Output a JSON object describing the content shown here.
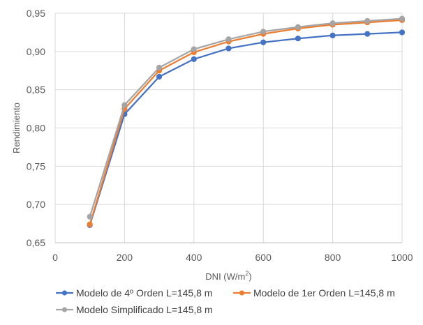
{
  "chart_data": {
    "type": "line",
    "x": [
      100,
      200,
      300,
      400,
      500,
      600,
      700,
      800,
      900,
      1000
    ],
    "series": [
      {
        "name": "Modelo de  4º Orden L=145,8 m",
        "color": "#4472C4",
        "values": [
          0.673,
          0.818,
          0.867,
          0.89,
          0.904,
          0.912,
          0.917,
          0.921,
          0.923,
          0.925
        ]
      },
      {
        "name": "Modelo de 1er Orden L=145,8 m",
        "color": "#ED7D31",
        "values": [
          0.674,
          0.825,
          0.875,
          0.899,
          0.913,
          0.923,
          0.93,
          0.935,
          0.938,
          0.941
        ]
      },
      {
        "name": "Modelo Simplificado L=145,8 m",
        "color": "#A5A5A5",
        "values": [
          0.684,
          0.83,
          0.879,
          0.903,
          0.916,
          0.926,
          0.932,
          0.937,
          0.94,
          0.943
        ]
      }
    ],
    "xlabel": "DNI (W/m²)",
    "ylabel": "Rendimiento",
    "xlim": [
      0,
      1000
    ],
    "ylim": [
      0.65,
      0.95
    ],
    "x_ticks": [
      "0",
      "200",
      "400",
      "600",
      "800",
      "1000"
    ],
    "y_ticks": [
      "0,65",
      "0,70",
      "0,75",
      "0,80",
      "0,85",
      "0,90",
      "0,95"
    ],
    "grid": true,
    "legend_position": "bottom"
  }
}
